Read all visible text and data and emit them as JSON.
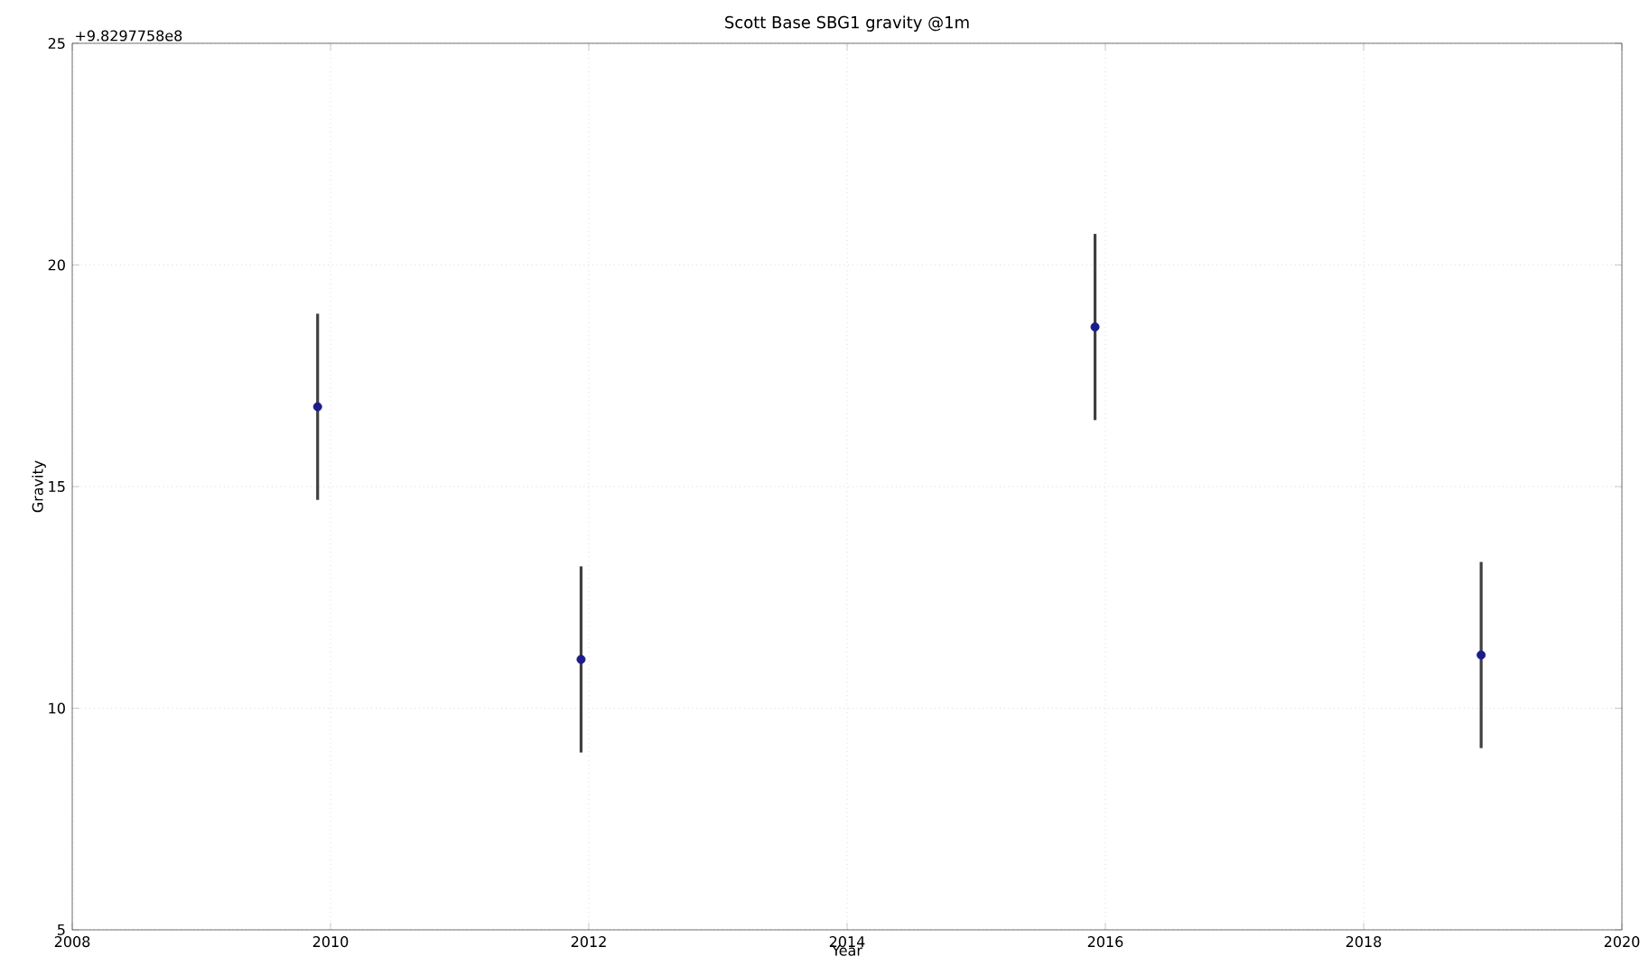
{
  "chart_data": {
    "type": "scatter",
    "title": "Scott Base SBG1 gravity @1m",
    "xlabel": "Year",
    "ylabel": "Gravity",
    "annotations": [
      "+9.8297758e8"
    ],
    "x": [
      2009.9,
      2011.94,
      2015.92,
      2018.91
    ],
    "values": [
      16.8,
      11.1,
      18.6,
      11.2
    ],
    "errors": [
      2.1,
      2.1,
      2.1,
      2.1
    ],
    "color": "#1c1c8c",
    "marker": "circle",
    "xlim": [
      2008,
      2020
    ],
    "xticks": [
      2008,
      2010,
      2012,
      2014,
      2016,
      2018,
      2020
    ],
    "ylim": [
      5,
      25
    ],
    "yticks": [
      5,
      10,
      15,
      20,
      25
    ],
    "grid": true
  }
}
